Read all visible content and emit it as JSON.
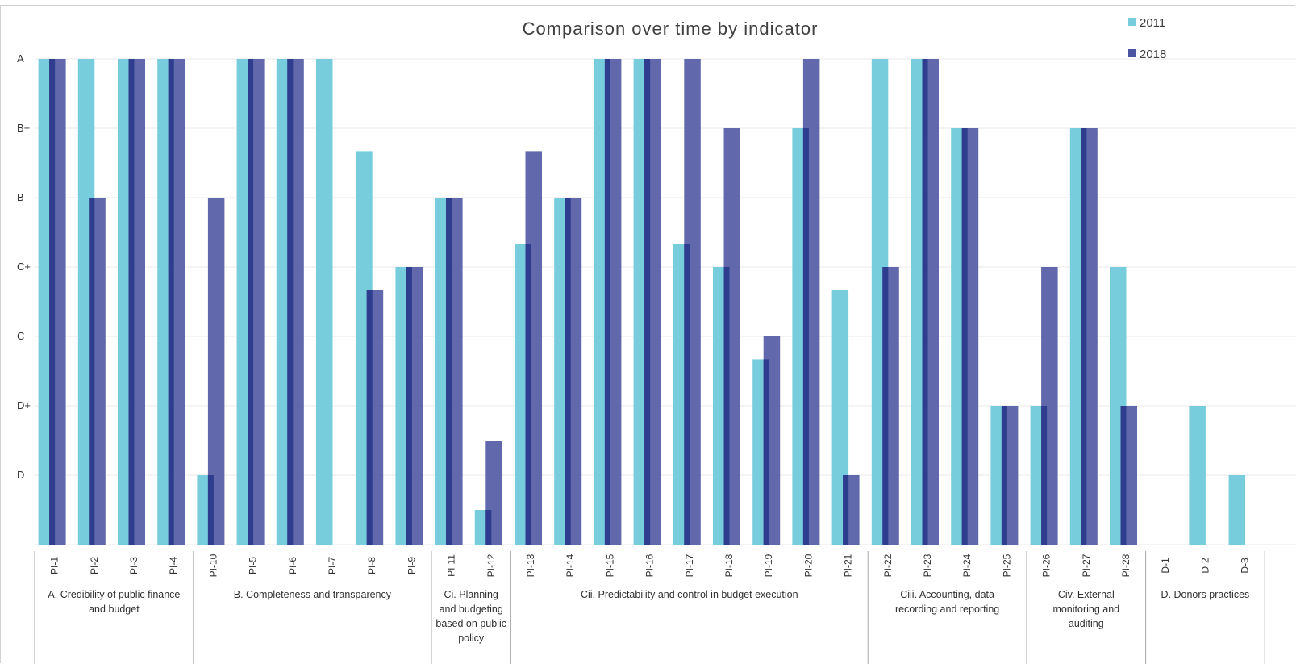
{
  "chart_data": {
    "type": "bar",
    "title": "Comparison over time by indicator",
    "xlabel": "",
    "ylabel": "",
    "y_ticks": [
      "A",
      "B+",
      "B",
      "C+",
      "C",
      "D+",
      "D"
    ],
    "grid": true,
    "legend_position": "top-right",
    "colors": {
      "2011": "#78cddc",
      "2018": "#4b54a0",
      "2018_edge": "#2e3d8e"
    },
    "categories": [
      "PI-1",
      "PI-2",
      "PI-3",
      "PI-4",
      "PI-10",
      "PI-5",
      "PI-6",
      "PI-7",
      "PI-8",
      "PI-9",
      "PI-11",
      "PI-12",
      "PI-13",
      "PI-14",
      "PI-15",
      "PI-16",
      "PI-17",
      "PI-18",
      "PI-19",
      "PI-20",
      "PI-21",
      "PI-22",
      "PI-23",
      "PI-24",
      "PI-25",
      "PI-26",
      "PI-27",
      "PI-28",
      "D-1",
      "D-2",
      "D-3"
    ],
    "series": [
      {
        "name": "2011",
        "values": [
          7,
          7,
          7,
          7,
          1,
          7,
          7,
          7,
          5.67,
          4,
          5,
          0.5,
          4.33,
          5,
          7,
          7,
          4.33,
          4,
          2.67,
          6,
          3.67,
          7,
          7,
          6,
          2,
          2,
          6,
          4,
          0,
          2,
          1
        ]
      },
      {
        "name": "2018",
        "values": [
          7,
          5,
          7,
          7,
          5,
          7,
          7,
          0,
          3.67,
          4,
          5,
          1.5,
          5.67,
          5,
          7,
          7,
          7,
          6,
          3,
          7,
          1,
          4,
          7,
          6,
          2,
          4,
          6,
          2,
          0,
          0,
          0
        ]
      }
    ],
    "groups": [
      {
        "lines": [
          "A.  Credibility  of  public finance",
          "and budget"
        ],
        "start": 0,
        "end": 3
      },
      {
        "lines": [
          "B.  Completeness  and transparency"
        ],
        "start": 4,
        "end": 9
      },
      {
        "lines": [
          "Ci.  Planning",
          "and budgeting",
          "based on public",
          "policy"
        ],
        "start": 10,
        "end": 11
      },
      {
        "lines": [
          "Cii.  Predictability and control in budget execution"
        ],
        "start": 12,
        "end": 20
      },
      {
        "lines": [
          "Ciii.  Accounting,  data",
          "recording and reporting"
        ],
        "start": 21,
        "end": 24
      },
      {
        "lines": [
          "Civ.  External",
          "monitoring  and",
          "auditing"
        ],
        "start": 25,
        "end": 27
      },
      {
        "lines": [
          "D. Donors practices"
        ],
        "start": 28,
        "end": 30
      }
    ]
  }
}
